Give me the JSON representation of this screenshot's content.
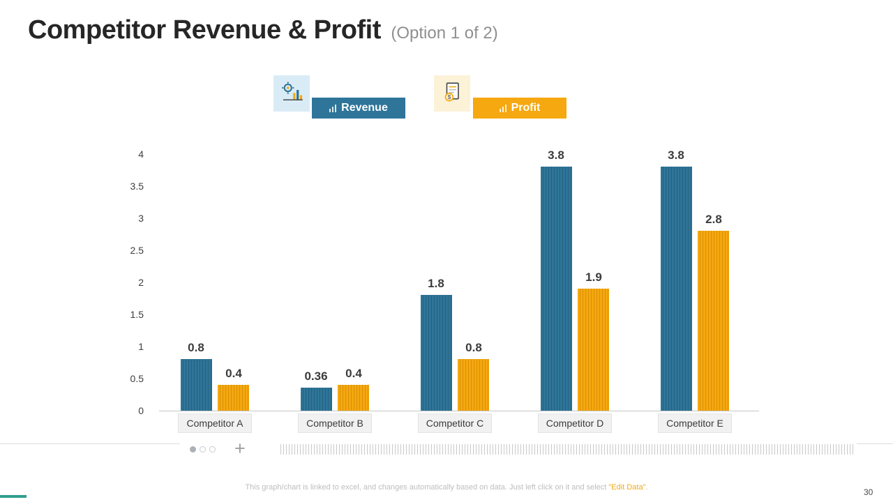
{
  "slide": {
    "title": "Competitor Revenue & Profit",
    "subtitle": "(Option 1 of 2)",
    "page_number": "30",
    "footer_prefix": "This graph/chart is linked to excel, and changes automatically based on data. Just left click on it and select ",
    "footer_highlight": "\"Edit Data\"",
    "footer_suffix": "."
  },
  "legend": {
    "revenue_label": "Revenue",
    "profit_label": "Profit",
    "revenue_color": "#2e7599",
    "profit_color": "#f5a80f"
  },
  "icons": {
    "revenue_icon": "gear-chart-analysis-icon",
    "profit_icon": "document-dollar-icon",
    "legend_bars_icon": "mini-bar-chart-icon"
  },
  "chart_data": {
    "type": "bar",
    "categories": [
      "Competitor A",
      "Competitor B",
      "Competitor C",
      "Competitor D",
      "Competitor E"
    ],
    "series": [
      {
        "name": "Revenue",
        "color": "#2e7599",
        "stripe_color": "#25617f",
        "values": [
          0.8,
          0.36,
          1.8,
          3.8,
          3.8
        ]
      },
      {
        "name": "Profit",
        "color": "#f5a80f",
        "stripe_color": "#d98f06",
        "values": [
          0.4,
          0.4,
          0.8,
          1.9,
          2.8
        ]
      }
    ],
    "y_ticks": [
      0,
      0.5,
      1,
      1.5,
      2,
      2.5,
      3,
      3.5,
      4
    ],
    "ylim": [
      0,
      4
    ],
    "xlabel": "",
    "ylabel": "",
    "grid": false,
    "legend_position": "top"
  }
}
